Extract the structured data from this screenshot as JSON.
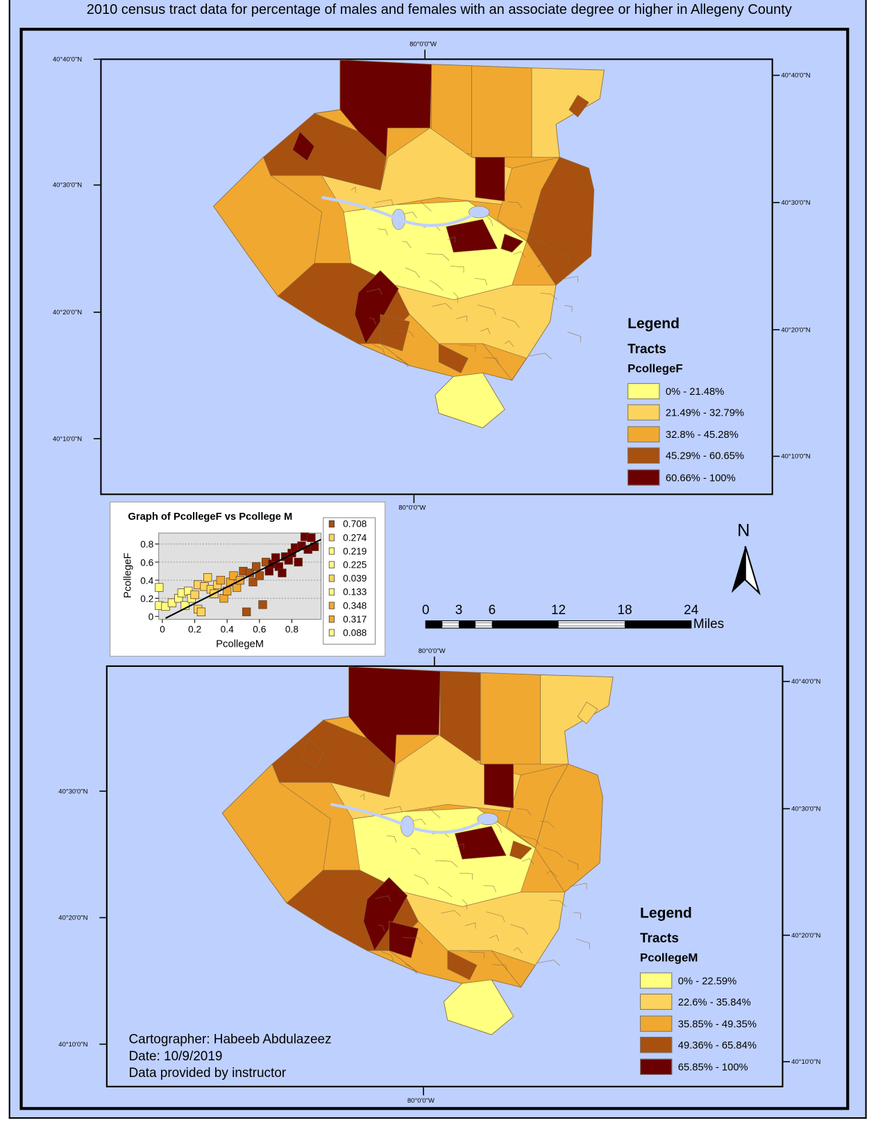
{
  "title": "2010 census tract data for percentage of males and females with  an associate degree or higher in Allegeny County",
  "colors": {
    "background": "#bed0fd",
    "class1": "#ffff80",
    "class2": "#fcd35d",
    "class3": "#f0a830",
    "class4": "#a8500f",
    "class5": "#6b0000",
    "water": "#bed0fd"
  },
  "map_top": {
    "graticule": {
      "top": "80°0'0\"W",
      "bottom": "80°0'0\"W",
      "left": [
        "40°40'0\"N",
        "40°30'0\"N",
        "40°20'0\"N",
        "40°10'0\"N"
      ],
      "right": [
        "40°40'0\"N",
        "40°30'0\"N",
        "40°20'0\"N",
        "40°10'0\"N"
      ]
    },
    "legend": {
      "title": "Legend",
      "layer": "Tracts",
      "field": "PcollegeF",
      "classes": [
        "0% - 21.48%",
        "21.49% - 32.79%",
        "32.8% - 45.28%",
        "45.29% - 60.65%",
        "60.66% - 100%"
      ]
    }
  },
  "map_bottom": {
    "graticule": {
      "top": "80°0'0\"W",
      "bottom": "80°0'0\"W",
      "left": [
        "40°30'0\"N",
        "40°20'0\"N",
        "40°10'0\"N"
      ],
      "right": [
        "40°40'0\"N",
        "40°30'0\"N",
        "40°20'0\"N",
        "40°10'0\"N"
      ]
    },
    "legend": {
      "title": "Legend",
      "layer": "Tracts",
      "field": "PcollegeM",
      "classes": [
        "0% - 22.59%",
        "22.6% - 35.84%",
        "35.85% - 49.35%",
        "49.36% - 65.84%",
        "65.85% - 100%"
      ]
    }
  },
  "north_arrow": {
    "label": "N",
    "icon": "north-arrow-icon"
  },
  "scale_bar": {
    "ticks": [
      "0",
      "3",
      "6",
      "12",
      "18",
      "24"
    ],
    "tick_values": [
      0,
      3,
      6,
      12,
      18,
      24
    ],
    "units": "Miles"
  },
  "credits": {
    "cartographer": "Cartographer: Habeeb Abdulazeez",
    "date": "Date: 10/9/2019",
    "source": "Data provided by instructor"
  },
  "chart_data": {
    "type": "scatter",
    "title": "Graph of PcollegeF vs Pcollege M",
    "xlabel": "PcollegeM",
    "ylabel": "PcollegeF",
    "xlim": [
      -0.05,
      0.95
    ],
    "ylim": [
      -0.02,
      0.9
    ],
    "xticks": [
      "0",
      "0.2",
      "0.4",
      "0.6",
      "0.8"
    ],
    "yticks": [
      "0",
      "0.2",
      "0.4",
      "0.6",
      "0.8"
    ],
    "grid": "horizontal dotted",
    "trendline": [
      [
        0.02,
        -0.02
      ],
      [
        0.98,
        0.85
      ]
    ],
    "points": [
      [
        -0.02,
        0.32
      ],
      [
        -0.02,
        0.12
      ],
      [
        0.02,
        0.11
      ],
      [
        0.06,
        0.15
      ],
      [
        0.1,
        0.2
      ],
      [
        0.12,
        0.26
      ],
      [
        0.14,
        0.12
      ],
      [
        0.16,
        0.28
      ],
      [
        0.18,
        0.2
      ],
      [
        0.2,
        0.24
      ],
      [
        0.22,
        0.08
      ],
      [
        0.24,
        0.05
      ],
      [
        0.22,
        0.35
      ],
      [
        0.26,
        0.33
      ],
      [
        0.28,
        0.43
      ],
      [
        0.3,
        0.3
      ],
      [
        0.32,
        0.25
      ],
      [
        0.34,
        0.35
      ],
      [
        0.36,
        0.4
      ],
      [
        0.38,
        0.2
      ],
      [
        0.4,
        0.28
      ],
      [
        0.42,
        0.38
      ],
      [
        0.44,
        0.45
      ],
      [
        0.46,
        0.32
      ],
      [
        0.48,
        0.4
      ],
      [
        0.5,
        0.5
      ],
      [
        0.52,
        0.05
      ],
      [
        0.54,
        0.48
      ],
      [
        0.56,
        0.38
      ],
      [
        0.58,
        0.55
      ],
      [
        0.6,
        0.45
      ],
      [
        0.62,
        0.13
      ],
      [
        0.64,
        0.6
      ],
      [
        0.66,
        0.5
      ],
      [
        0.68,
        0.58
      ],
      [
        0.7,
        0.65
      ],
      [
        0.72,
        0.55
      ],
      [
        0.74,
        0.48
      ],
      [
        0.76,
        0.66
      ],
      [
        0.78,
        0.62
      ],
      [
        0.8,
        0.7
      ],
      [
        0.82,
        0.76
      ],
      [
        0.84,
        0.6
      ],
      [
        0.86,
        0.78
      ],
      [
        0.88,
        0.88
      ],
      [
        0.9,
        0.74
      ],
      [
        0.92,
        0.87
      ],
      [
        0.94,
        0.77
      ]
    ],
    "legend": [
      {
        "label": "0.708",
        "color": "#a8500f"
      },
      {
        "label": "0.274",
        "color": "#fcd35d"
      },
      {
        "label": "0.219",
        "color": "#ffff80"
      },
      {
        "label": "0.225",
        "color": "#ffff80"
      },
      {
        "label": "0.039",
        "color": "#fcd35d"
      },
      {
        "label": "0.133",
        "color": "#ffff80"
      },
      {
        "label": "0.348",
        "color": "#f0a830"
      },
      {
        "label": "0.317",
        "color": "#f0a830"
      },
      {
        "label": "0.088",
        "color": "#ffff80"
      }
    ]
  }
}
